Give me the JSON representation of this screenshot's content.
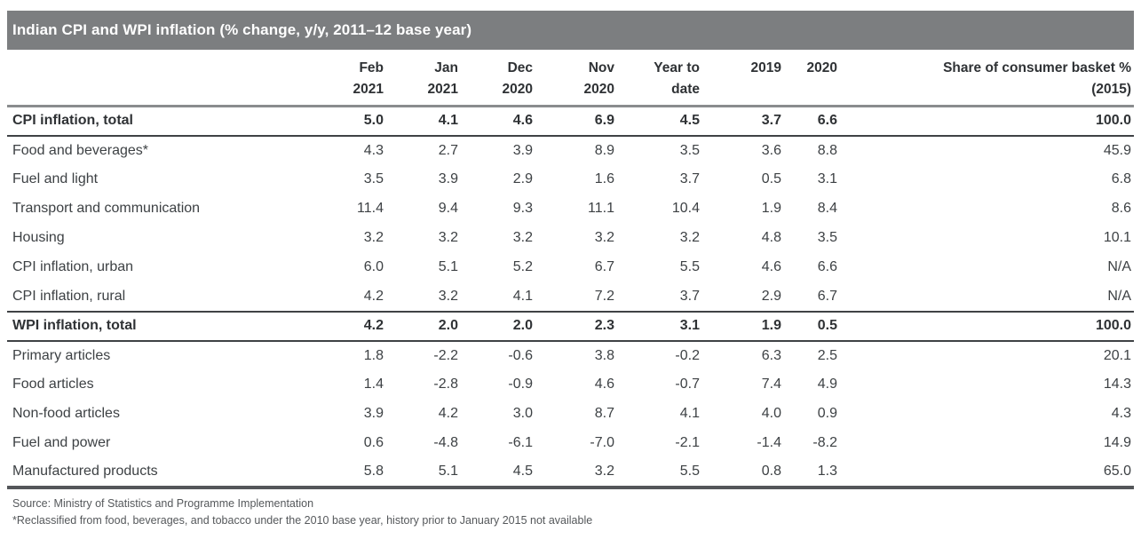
{
  "colors": {
    "title_bar_bg": "#7c7e80",
    "title_text": "#ffffff",
    "heading_text": "#2f3235",
    "body_text": "#3d4144",
    "footnote_text": "#55585b",
    "rule_gray": "#8a8c8e",
    "rule_dark": "#3f4245",
    "rule_bottom": "#54565a",
    "background": "#ffffff"
  },
  "table": {
    "header_cols": [
      [
        "Feb",
        "2021"
      ],
      [
        "Jan",
        "2021"
      ],
      [
        "Dec",
        "2020"
      ],
      [
        "Nov",
        "2020"
      ],
      [
        "Year to",
        "date"
      ],
      [
        "2019"
      ],
      [
        "2020"
      ],
      [
        "Share of consumer basket %",
        "(2015)"
      ]
    ]
  },
  "footnotes": [
    "Source: Ministry of Statistics and Programme Implementation",
    "*Reclassified from food, beverages, and tobacco under the 2010 base year, history prior to January 2015 not available"
  ],
  "chart_data": {
    "type": "table",
    "title": "Indian CPI and WPI inflation (% change, y/y, 2011–12 base year)",
    "columns": [
      "Feb 2021",
      "Jan 2021",
      "Dec 2020",
      "Nov 2020",
      "Year to date",
      "2019",
      "2020",
      "Share of consumer basket % (2015)"
    ],
    "rows": [
      {
        "label": "CPI inflation, total",
        "bold": true,
        "values": [
          5.0,
          4.1,
          4.6,
          6.9,
          4.5,
          3.7,
          6.6,
          100.0
        ]
      },
      {
        "label": "Food and beverages*",
        "bold": false,
        "values": [
          4.3,
          2.7,
          3.9,
          8.9,
          3.5,
          3.6,
          8.8,
          45.9
        ]
      },
      {
        "label": "Fuel and light",
        "bold": false,
        "values": [
          3.5,
          3.9,
          2.9,
          1.6,
          3.7,
          0.5,
          3.1,
          6.8
        ]
      },
      {
        "label": "Transport and communication",
        "bold": false,
        "values": [
          11.4,
          9.4,
          9.3,
          11.1,
          10.4,
          1.9,
          8.4,
          8.6
        ]
      },
      {
        "label": "Housing",
        "bold": false,
        "values": [
          3.2,
          3.2,
          3.2,
          3.2,
          3.2,
          4.8,
          3.5,
          10.1
        ]
      },
      {
        "label": "CPI inflation, urban",
        "bold": false,
        "values": [
          6.0,
          5.1,
          5.2,
          6.7,
          5.5,
          4.6,
          6.6,
          "N/A"
        ]
      },
      {
        "label": "CPI inflation, rural",
        "bold": false,
        "values": [
          4.2,
          3.2,
          4.1,
          7.2,
          3.7,
          2.9,
          6.7,
          "N/A"
        ]
      },
      {
        "label": "WPI inflation, total",
        "bold": true,
        "values": [
          4.2,
          2.0,
          2.0,
          2.3,
          3.1,
          1.9,
          0.5,
          100.0
        ]
      },
      {
        "label": "Primary articles",
        "bold": false,
        "values": [
          1.8,
          -2.2,
          -0.6,
          3.8,
          -0.2,
          6.3,
          2.5,
          20.1
        ]
      },
      {
        "label": "Food articles",
        "bold": false,
        "values": [
          1.4,
          -2.8,
          -0.9,
          4.6,
          -0.7,
          7.4,
          4.9,
          14.3
        ]
      },
      {
        "label": "Non-food articles",
        "bold": false,
        "values": [
          3.9,
          4.2,
          3.0,
          8.7,
          4.1,
          4.0,
          0.9,
          4.3
        ]
      },
      {
        "label": "Fuel and power",
        "bold": false,
        "values": [
          0.6,
          -4.8,
          -6.1,
          -7.0,
          -2.1,
          -1.4,
          -8.2,
          14.9
        ]
      },
      {
        "label": "Manufactured products",
        "bold": false,
        "values": [
          5.8,
          5.1,
          4.5,
          3.2,
          5.5,
          0.8,
          1.3,
          65.0
        ]
      }
    ]
  }
}
